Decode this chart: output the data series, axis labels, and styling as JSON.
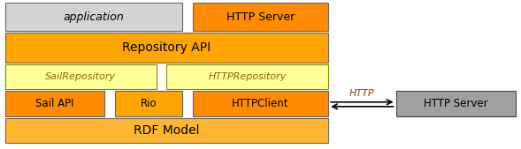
{
  "fig_width": 5.89,
  "fig_height": 1.69,
  "dpi": 100,
  "bg_color": "#ffffff",
  "colors": {
    "light_gray": "#d3d3d3",
    "orange_dark": "#ff8c00",
    "orange_medium": "#ffa500",
    "orange_light": "#ffb732",
    "yellow_light": "#ffff99",
    "gray_box": "#a0a0a0"
  },
  "labels": {
    "application": "application",
    "http_server_top": "HTTP Server",
    "repository_api": "Repository API",
    "sail_repository": "SailRepository",
    "http_repository": "HTTPRepository",
    "sail_api": "Sail API",
    "rio": "Rio",
    "http_client": "HTTPClient",
    "rdf_model": "RDF Model",
    "http_arrow": "HTTP",
    "http_server_right": "HTTP Server"
  }
}
